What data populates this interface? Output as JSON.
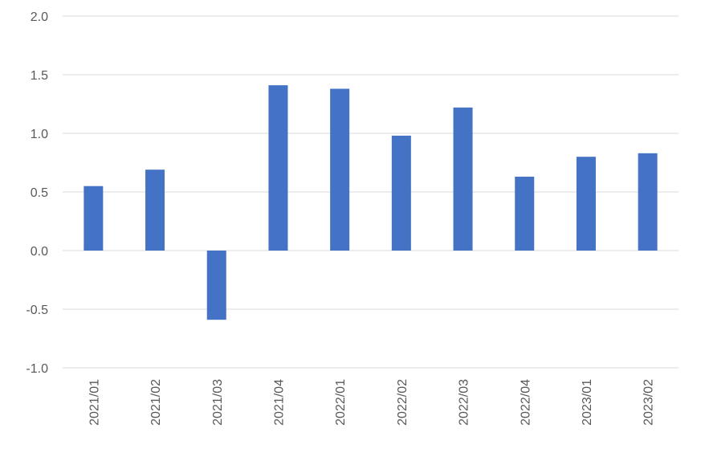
{
  "chart_data": {
    "type": "bar",
    "categories": [
      "2021/01",
      "2021/02",
      "2021/03",
      "2021/04",
      "2022/01",
      "2022/02",
      "2022/03",
      "2022/04",
      "2023/01",
      "2023/02"
    ],
    "values": [
      0.55,
      0.69,
      -0.59,
      1.41,
      1.38,
      0.98,
      1.22,
      0.63,
      0.8,
      0.83
    ],
    "yticks": [
      "2.0",
      "1.5",
      "1.0",
      "0.5",
      "0.0",
      "-0.5",
      "-1.0"
    ],
    "ylim": [
      -1.0,
      2.0
    ],
    "title": "",
    "xlabel": "",
    "ylabel": "",
    "grid": true,
    "legend": "none",
    "bar_color": "#4472c4",
    "grid_color": "#d9d9d9"
  }
}
